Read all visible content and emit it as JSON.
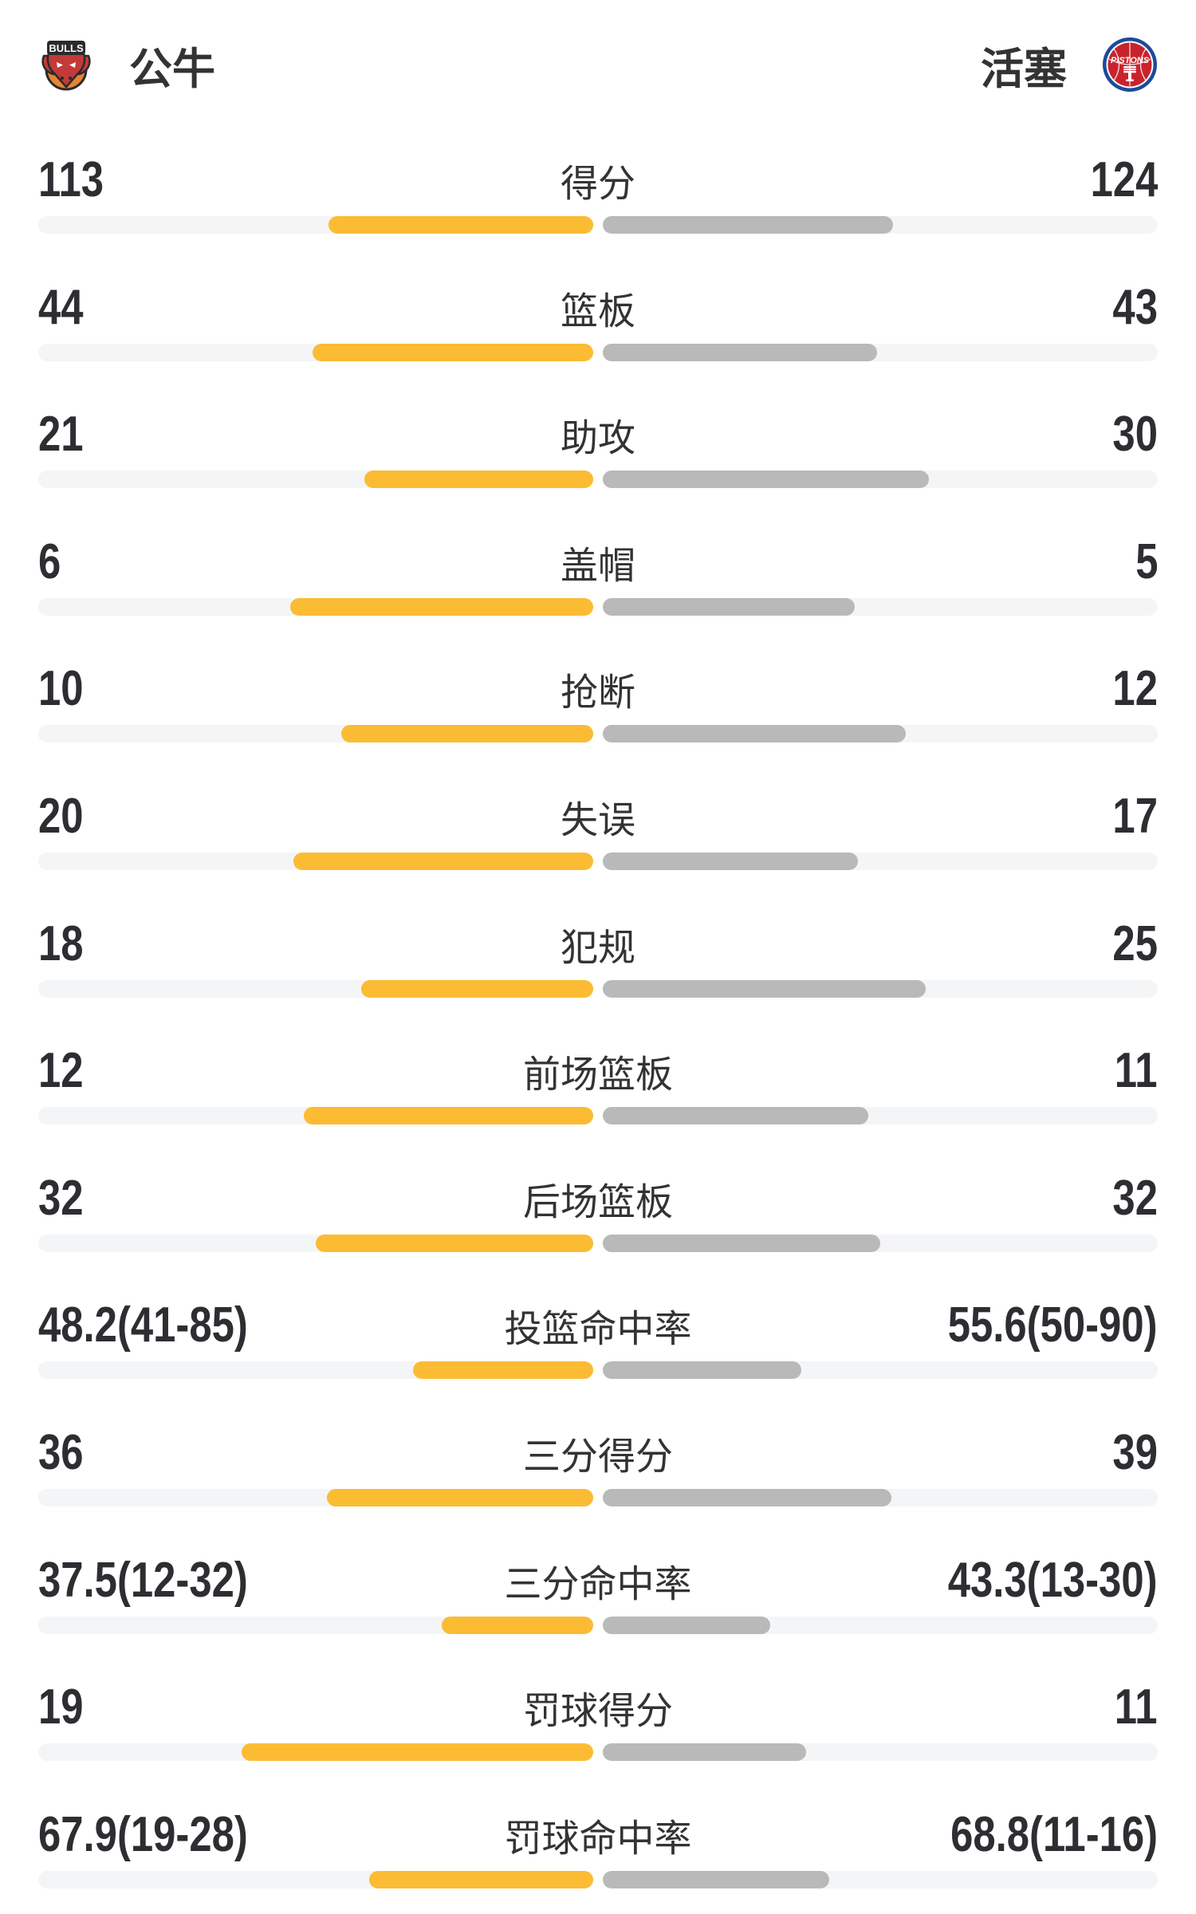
{
  "header": {
    "left_team": {
      "name": "公牛",
      "logo_icon": "bulls-logo-icon",
      "logo_text": "BULLS"
    },
    "right_team": {
      "name": "活塞",
      "logo_icon": "pistons-logo-icon",
      "logo_text": "PISTONS"
    }
  },
  "colors": {
    "left_fill": "#FBBC34",
    "right_fill": "#B9B9B9",
    "track": "#F4F5F7",
    "value_text": "#2D2E32",
    "label_text": "#333333",
    "bulls_red": "#C23B38",
    "bulls_orange": "#E58532",
    "pistons_blue": "#1A4B9B",
    "pistons_red": "#C8232C"
  },
  "chart_data": {
    "type": "bar",
    "title": "",
    "legend_position": "top",
    "orientation": "horizontal-paired",
    "categories": [
      "得分",
      "篮板",
      "助攻",
      "盖帽",
      "抢断",
      "失误",
      "犯规",
      "前场篮板",
      "后场篮板",
      "投篮命中率",
      "三分得分",
      "三分命中率",
      "罚球得分",
      "罚球命中率"
    ],
    "series": [
      {
        "name": "公牛",
        "values": [
          113,
          44,
          21,
          6,
          10,
          20,
          18,
          12,
          32,
          48.2,
          36,
          37.5,
          19,
          67.9
        ]
      },
      {
        "name": "活塞",
        "values": [
          124,
          43,
          30,
          5,
          12,
          17,
          25,
          11,
          32,
          55.6,
          39,
          43.3,
          11,
          68.8
        ]
      }
    ],
    "rows": [
      {
        "label": "得分",
        "left_display": "113",
        "right_display": "124",
        "left_value": 113,
        "right_value": 124,
        "mode": "count"
      },
      {
        "label": "篮板",
        "left_display": "44",
        "right_display": "43",
        "left_value": 44,
        "right_value": 43,
        "mode": "count"
      },
      {
        "label": "助攻",
        "left_display": "21",
        "right_display": "30",
        "left_value": 21,
        "right_value": 30,
        "mode": "count"
      },
      {
        "label": "盖帽",
        "left_display": "6",
        "right_display": "5",
        "left_value": 6,
        "right_value": 5,
        "mode": "count"
      },
      {
        "label": "抢断",
        "left_display": "10",
        "right_display": "12",
        "left_value": 10,
        "right_value": 12,
        "mode": "count"
      },
      {
        "label": "失误",
        "left_display": "20",
        "right_display": "17",
        "left_value": 20,
        "right_value": 17,
        "mode": "count"
      },
      {
        "label": "犯规",
        "left_display": "18",
        "right_display": "25",
        "left_value": 18,
        "right_value": 25,
        "mode": "count"
      },
      {
        "label": "前场篮板",
        "left_display": "12",
        "right_display": "11",
        "left_value": 12,
        "right_value": 11,
        "mode": "count"
      },
      {
        "label": "后场篮板",
        "left_display": "32",
        "right_display": "32",
        "left_value": 32,
        "right_value": 32,
        "mode": "count"
      },
      {
        "label": "投篮命中率",
        "left_display": "48.2(41-85)",
        "right_display": "55.6(50-90)",
        "left_value": 48.2,
        "right_value": 55.6,
        "mode": "percent"
      },
      {
        "label": "三分得分",
        "left_display": "36",
        "right_display": "39",
        "left_value": 36,
        "right_value": 39,
        "mode": "count"
      },
      {
        "label": "三分命中率",
        "left_display": "37.5(12-32)",
        "right_display": "43.3(13-30)",
        "left_value": 37.5,
        "right_value": 43.3,
        "mode": "percent"
      },
      {
        "label": "罚球得分",
        "left_display": "19",
        "right_display": "11",
        "left_value": 19,
        "right_value": 11,
        "mode": "count"
      },
      {
        "label": "罚球命中率",
        "left_display": "67.9(19-28)",
        "right_display": "68.8(11-16)",
        "left_value": 67.9,
        "right_value": 68.8,
        "mode": "percent"
      }
    ]
  }
}
